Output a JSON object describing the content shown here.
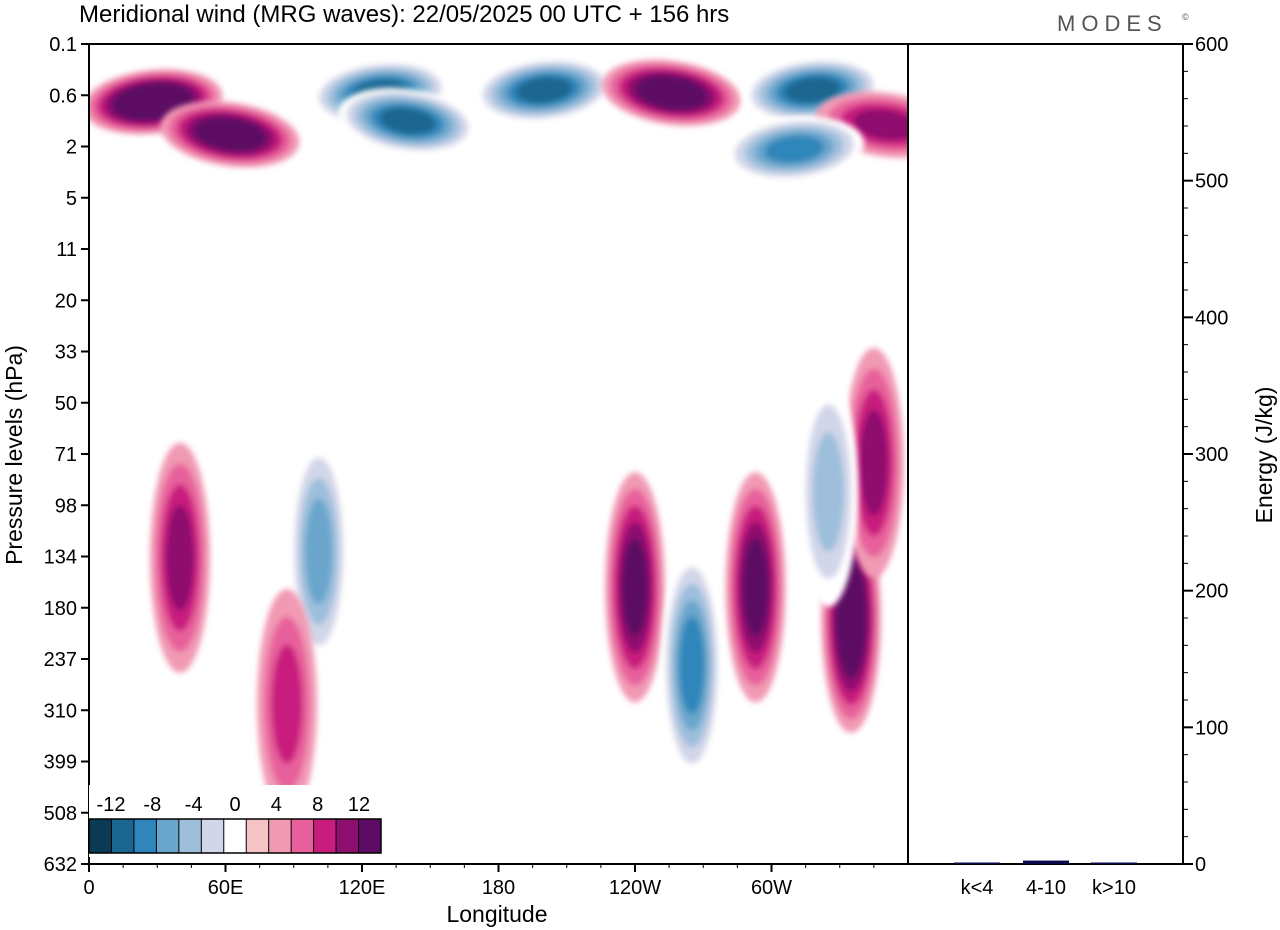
{
  "brand": {
    "name": "MODES",
    "mark": "©"
  },
  "chart_data": [
    {
      "type": "heatmap",
      "title": "Meridional wind (MRG waves):  22/05/2025  00 UTC  + 156 hrs",
      "xlabel": "Longitude",
      "ylabel": "Pressure levels (hPa)",
      "x_ticks": [
        "0",
        "60E",
        "120E",
        "180",
        "120W",
        "60W"
      ],
      "x_tick_values": [
        0,
        60,
        120,
        180,
        240,
        300
      ],
      "xlim": [
        0,
        360
      ],
      "y_ticks": [
        "0.1",
        "0.6",
        "2",
        "5",
        "11",
        "20",
        "33",
        "50",
        "71",
        "98",
        "134",
        "180",
        "237",
        "310",
        "399",
        "508",
        "632"
      ],
      "colorbar": {
        "labels": [
          "-12",
          "-8",
          "-4",
          "0",
          "4",
          "8",
          "12"
        ],
        "levels": [
          -14,
          -12,
          -10,
          -8,
          -6,
          -4,
          -2,
          2,
          4,
          6,
          8,
          10,
          12,
          14
        ],
        "colors": [
          "#0b3a56",
          "#1b6690",
          "#2f86ba",
          "#6aa5cc",
          "#9dbfdc",
          "#d2d6e9",
          "#ffffff",
          "#f6c3c4",
          "#f19ab4",
          "#e8609b",
          "#c81d7e",
          "#8e0f6e",
          "#5c0a63"
        ],
        "placement": "bottom-left"
      },
      "features": [
        {
          "lon": 28,
          "lev": 0.7,
          "value": 14
        },
        {
          "lon": 62,
          "lev": 1.5,
          "value": 13
        },
        {
          "lon": 128,
          "lev": 0.55,
          "value": -12
        },
        {
          "lon": 140,
          "lev": 1.1,
          "value": -12
        },
        {
          "lon": 200,
          "lev": 0.5,
          "value": -13
        },
        {
          "lon": 256,
          "lev": 0.55,
          "value": 13
        },
        {
          "lon": 318,
          "lev": 0.5,
          "value": -12
        },
        {
          "lon": 350,
          "lev": 1.2,
          "value": 8
        },
        {
          "lon": 310,
          "lev": 2.1,
          "value": -10
        },
        {
          "lon": 40,
          "lev": 135,
          "value": 8
        },
        {
          "lon": 101,
          "lev": 130,
          "value": -9
        },
        {
          "lon": 240,
          "lev": 160,
          "value": 11
        },
        {
          "lon": 265,
          "lev": 245,
          "value": -10
        },
        {
          "lon": 293,
          "lev": 160,
          "value": 11
        },
        {
          "lon": 335,
          "lev": 190,
          "value": 12
        },
        {
          "lon": 345,
          "lev": 75,
          "value": 9
        },
        {
          "lon": 87,
          "lev": 300,
          "value": 6
        },
        {
          "lon": 325,
          "lev": 90,
          "value": -7
        }
      ]
    },
    {
      "type": "bar",
      "ylabel": "Energy (J/kg)",
      "categories": [
        "k<4",
        "4-10",
        "k>10"
      ],
      "values": [
        0.3,
        2.5,
        0.2
      ],
      "ylim": [
        0,
        600
      ],
      "y_ticks": [
        "0",
        "100",
        "200",
        "300",
        "400",
        "500",
        "600"
      ],
      "y_tick_values": [
        0,
        100,
        200,
        300,
        400,
        500,
        600
      ],
      "colors": [
        "#0a0a4a",
        "#0a0a4a",
        "#0a0a4a"
      ]
    }
  ]
}
